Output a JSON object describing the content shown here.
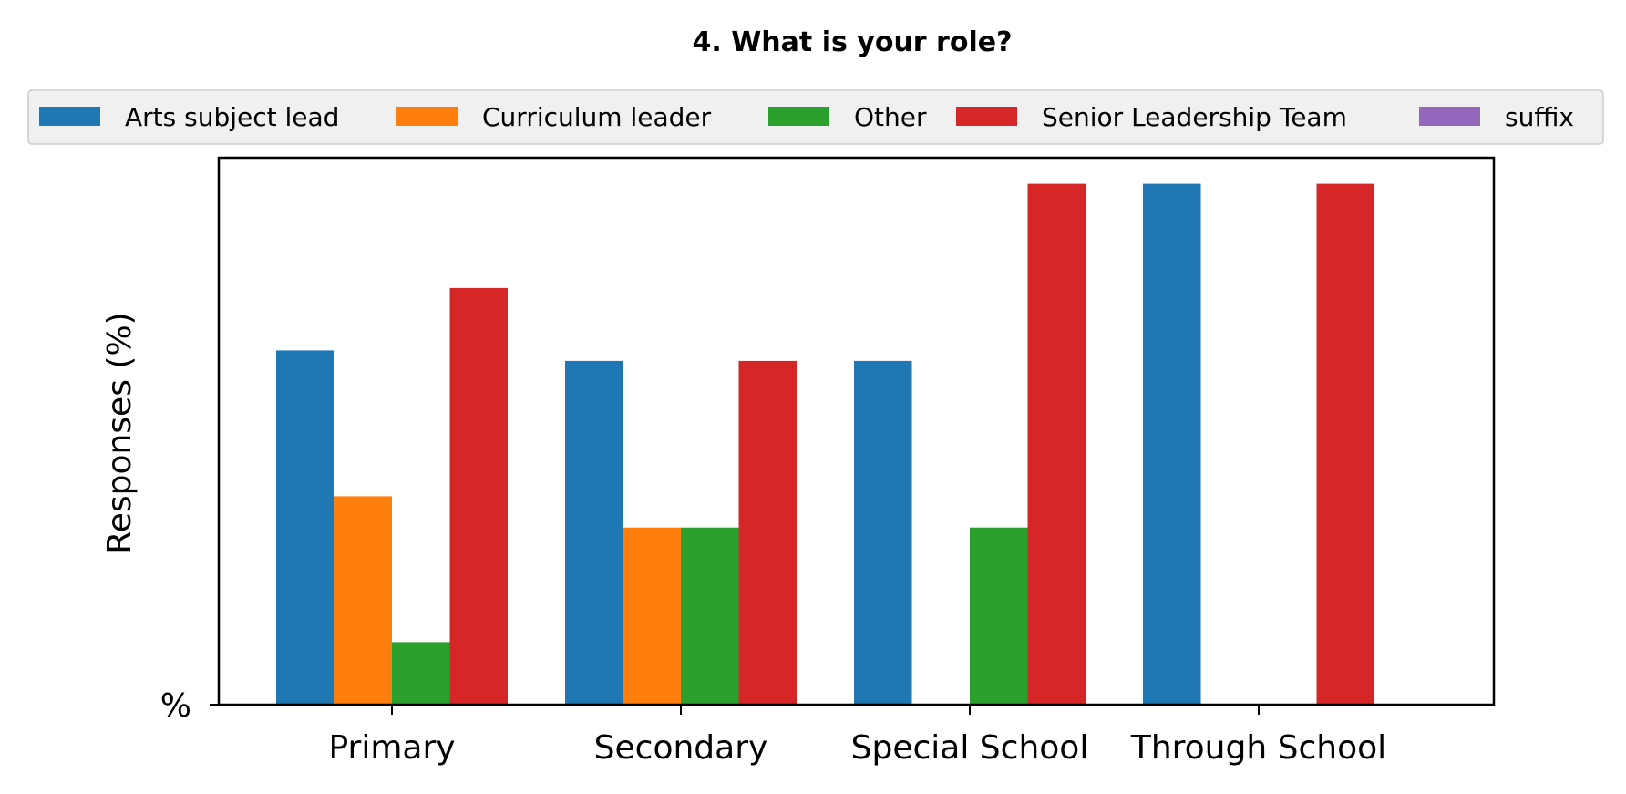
{
  "chart_data": {
    "type": "bar",
    "title": "4. What is your role?",
    "xlabel": "",
    "ylabel": "Responses (%)",
    "ytick_label": "%",
    "categories": [
      "Primary",
      "Secondary",
      "Special School",
      "Through School"
    ],
    "series": [
      {
        "name": "Arts subject lead",
        "color": "#1f77b4",
        "values": [
          68,
          66,
          66,
          100
        ]
      },
      {
        "name": "Curriculum leader",
        "color": "#ff7f0e",
        "values": [
          40,
          34,
          0,
          0
        ]
      },
      {
        "name": "Other",
        "color": "#2ca02c",
        "values": [
          12,
          34,
          34,
          0
        ]
      },
      {
        "name": "Senior Leadership Team",
        "color": "#d62728",
        "values": [
          80,
          66,
          100,
          100
        ]
      },
      {
        "name": "suffix",
        "color": "#9467bd",
        "values": [
          0,
          0,
          0,
          0
        ]
      }
    ],
    "ylim": [
      0,
      105
    ],
    "grid": false,
    "legend_position": "top"
  }
}
